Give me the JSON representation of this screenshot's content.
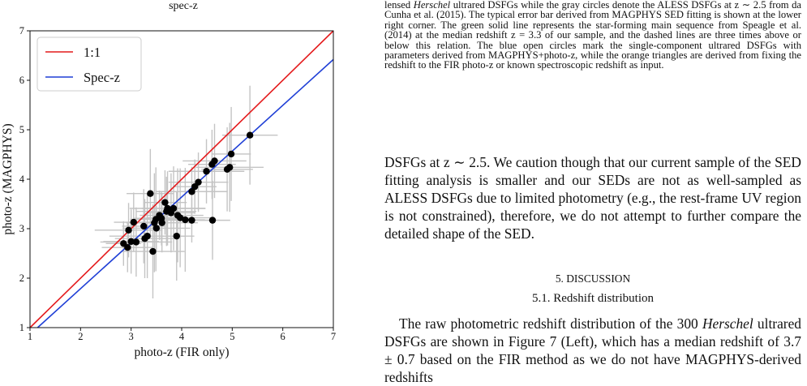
{
  "figure": {
    "top_title": "spec-z",
    "chart_data": {
      "type": "scatter",
      "xlabel": "photo-z (FIR only)",
      "ylabel": "photo-z (MAGPHYS)",
      "xlim": [
        1,
        7
      ],
      "ylim": [
        1,
        7
      ],
      "xticks": [
        1,
        2,
        3,
        4,
        5,
        6,
        7
      ],
      "yticks": [
        1,
        2,
        3,
        4,
        5,
        6,
        7
      ],
      "legend_position": "top-left",
      "lines": [
        {
          "name": "1:1",
          "color": "#e41a1c",
          "points": [
            [
              1,
              1
            ],
            [
              7,
              7
            ]
          ]
        },
        {
          "name": "Spec-z",
          "color": "#1f3fd6",
          "points": [
            [
              1.15,
              1
            ],
            [
              7,
              6.42
            ]
          ]
        }
      ],
      "points": [
        {
          "x": 2.85,
          "y": 2.7
        },
        {
          "x": 2.93,
          "y": 2.62
        },
        {
          "x": 2.95,
          "y": 2.97
        },
        {
          "x": 3.05,
          "y": 3.13
        },
        {
          "x": 3.0,
          "y": 2.74
        },
        {
          "x": 3.1,
          "y": 2.73
        },
        {
          "x": 3.25,
          "y": 3.05
        },
        {
          "x": 3.27,
          "y": 2.8
        },
        {
          "x": 3.32,
          "y": 2.85
        },
        {
          "x": 3.38,
          "y": 3.71
        },
        {
          "x": 3.43,
          "y": 2.54
        },
        {
          "x": 3.46,
          "y": 3.12
        },
        {
          "x": 3.49,
          "y": 3.19
        },
        {
          "x": 3.5,
          "y": 3.01
        },
        {
          "x": 3.56,
          "y": 3.27
        },
        {
          "x": 3.6,
          "y": 3.21
        },
        {
          "x": 3.61,
          "y": 3.12
        },
        {
          "x": 3.67,
          "y": 3.53
        },
        {
          "x": 3.7,
          "y": 3.35
        },
        {
          "x": 3.72,
          "y": 3.41
        },
        {
          "x": 3.79,
          "y": 3.32
        },
        {
          "x": 3.84,
          "y": 3.41
        },
        {
          "x": 3.9,
          "y": 2.85
        },
        {
          "x": 3.92,
          "y": 3.27
        },
        {
          "x": 3.97,
          "y": 3.22
        },
        {
          "x": 4.07,
          "y": 3.18
        },
        {
          "x": 4.2,
          "y": 3.17
        },
        {
          "x": 4.2,
          "y": 3.75
        },
        {
          "x": 4.26,
          "y": 3.85
        },
        {
          "x": 4.33,
          "y": 3.94
        },
        {
          "x": 4.49,
          "y": 4.16
        },
        {
          "x": 4.6,
          "y": 4.3
        },
        {
          "x": 4.65,
          "y": 4.37
        },
        {
          "x": 4.61,
          "y": 3.17
        },
        {
          "x": 4.9,
          "y": 4.2
        },
        {
          "x": 4.95,
          "y": 4.24
        },
        {
          "x": 4.98,
          "y": 4.51
        },
        {
          "x": 5.35,
          "y": 4.89
        }
      ]
    }
  },
  "caption": {
    "line1_italic": "Herschel",
    "line1_rest": " ultrared DSFGs while the gray circles denote the",
    "line1_prefix": "lensed ",
    "rest": "ALESS DSFGs at z ∼ 2.5 from da Cunha et al. (2015). The typical error bar derived from MAGPHYS SED fitting is shown at the lower right corner. The green solid line represents the star-forming main sequence from Speagle et al. (2014) at the median redshift z = 3.3 of our sample, and the dashed lines are three times above or below this relation. The blue open circles mark the single-component ultrared DSFGs with parameters derived from MAGPHYS+photo-z, while the orange triangles are derived from fixing the redshift to the FIR photo-z or known spectroscopic redshift as input."
  },
  "body1": "DSFGs at z ∼ 2.5. We caution though that our current sample of the SED fitting analysis is smaller and our SEDs are not as well-sampled as ALESS DSFGs due to limited photometry (e.g., the rest-frame UV region is not constrained), therefore, we do not attempt to further compare the detailed shape of the SED.",
  "section_heading": "5. DISCUSSION",
  "subsection_heading": "5.1. Redshift distribution",
  "body2_start": "The raw photometric redshift distribution of the 300 ",
  "body2_italic": "Herschel",
  "body2_end": " ultrared DSFGs are shown in Figure 7 (Left), which has a median redshift of 3.7 ± 0.7 based on the FIR method as we do not have MAGPHYS-derived redshifts"
}
